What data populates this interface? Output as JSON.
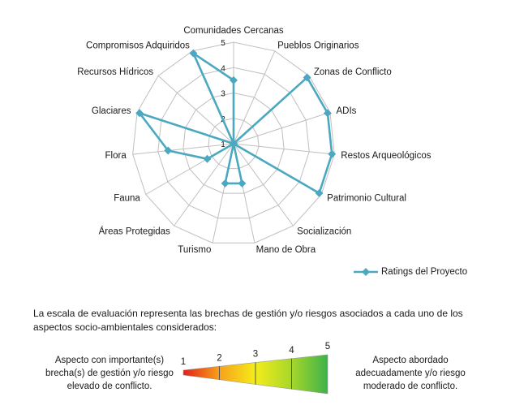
{
  "chart_data": {
    "type": "radar",
    "axes": [
      "Comunidades Cercanas",
      "Pueblos Originarios",
      "Zonas de Conflicto",
      "ADIs",
      "Restos Arqueológicos",
      "Patrimonio Cultural",
      "Socialización",
      "Mano de Obra",
      "Turismo",
      "Áreas Protegidas",
      "Fauna",
      "Flora",
      "Glaciares",
      "Recursos Hídricos",
      "Compromisos Adquiridos"
    ],
    "range": [
      1,
      5
    ],
    "ticks": [
      "1",
      "2",
      "3",
      "4",
      "5"
    ],
    "series": [
      {
        "name": "Ratings del Proyecto",
        "color": "#4aa8c0",
        "values": [
          3.5,
          1,
          4.9,
          4.9,
          4.9,
          4.9,
          1,
          2.6,
          2.6,
          1,
          2.2,
          3.6,
          4.9,
          1,
          4.9
        ]
      }
    ],
    "grid": true,
    "legend_position": "bottom-right"
  },
  "note": "La escala  de evaluación representa las brechas de gestión y/o riesgos asociados a cada uno de los aspectos socio-ambientales considerados:",
  "scale": {
    "left_text": "Aspecto con importante(s) brecha(s) de gestión y/o riesgo elevado de conflicto.",
    "right_text": "Aspecto abordado adecuadamente y/o riesgo moderado de conflicto.",
    "levels": [
      "1",
      "2",
      "3",
      "4",
      "5"
    ],
    "gradient_colors": [
      "#e3201b",
      "#f7a21a",
      "#f4ec1a",
      "#a6d72a",
      "#3db24a"
    ]
  }
}
